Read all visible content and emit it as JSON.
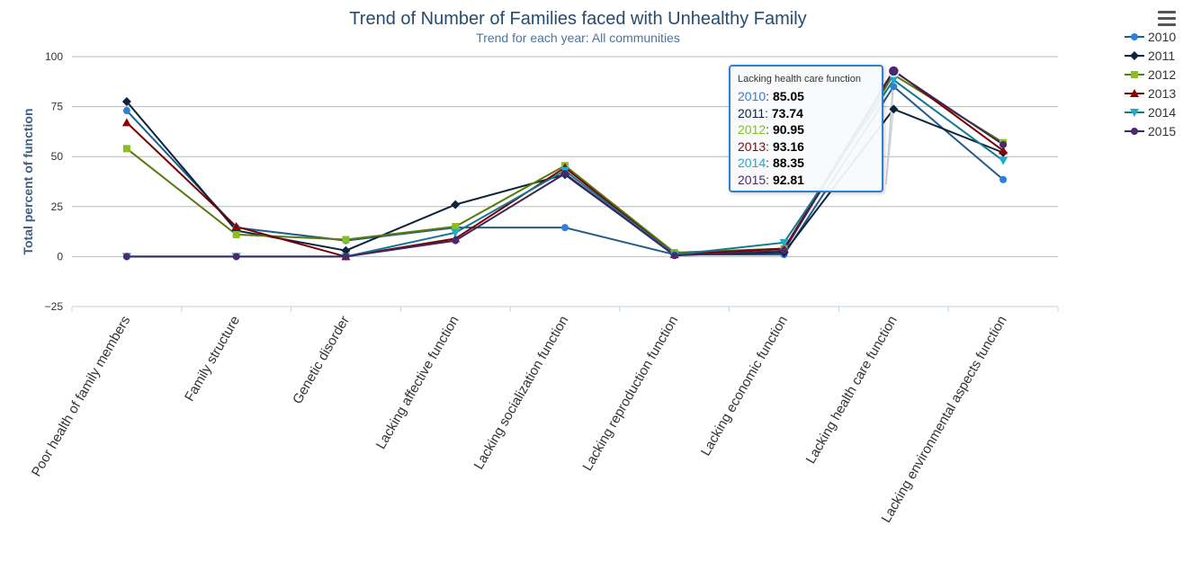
{
  "chart_data": {
    "type": "line",
    "title": "Trend of Number of Families faced with Unhealthy Family",
    "subtitle": "Trend for each year: All communities",
    "xlabel": "",
    "ylabel": "Total percent of function",
    "ylim": [
      -25,
      100
    ],
    "yticks": [
      -25,
      0,
      25,
      50,
      75,
      100
    ],
    "grid": true,
    "legend_position": "top-right",
    "categories": [
      "Poor health of family members",
      "Family structure",
      "Genetic disorder",
      "Lacking affective function",
      "Lacking socialization function",
      "Lacking reproduction function",
      "Lacking economic function",
      "Lacking health care function",
      "Lacking environmental aspects function"
    ],
    "series": [
      {
        "name": "2010",
        "color": "#2f7ed8",
        "line_color": "#1f5c8c",
        "marker": "circle",
        "values": [
          73,
          14.5,
          8,
          14.5,
          14.5,
          1,
          1,
          85.05,
          38.5
        ]
      },
      {
        "name": "2011",
        "color": "#0d233a",
        "line_color": "#0d233a",
        "marker": "diamond",
        "values": [
          77.5,
          13,
          3,
          26,
          41,
          1,
          2,
          73.74,
          52
        ]
      },
      {
        "name": "2012",
        "color": "#8bbc21",
        "line_color": "#5a7a10",
        "marker": "square",
        "values": [
          54,
          11,
          8.5,
          15,
          45.5,
          2,
          4,
          90.95,
          57
        ]
      },
      {
        "name": "2013",
        "color": "#910000",
        "line_color": "#7a0000",
        "marker": "triangle",
        "values": [
          67,
          15,
          0,
          9,
          44.5,
          1,
          4,
          93.16,
          53
        ]
      },
      {
        "name": "2014",
        "color": "#1aadce",
        "line_color": "#11788f",
        "marker": "triangle-down",
        "values": [
          0,
          0,
          0,
          12,
          43,
          1,
          7,
          88.35,
          48
        ]
      },
      {
        "name": "2015",
        "color": "#492970",
        "line_color": "#3f2460",
        "marker": "circle",
        "values": [
          0,
          0,
          0,
          8,
          41.5,
          0.5,
          3,
          92.81,
          56
        ]
      }
    ],
    "tooltip": {
      "header": "Lacking health care function",
      "rows": [
        {
          "year": "2010",
          "value": "85.05",
          "color": "#2f7ed8"
        },
        {
          "year": "2011",
          "value": "73.74",
          "color": "#0d233a"
        },
        {
          "year": "2012",
          "value": "90.95",
          "color": "#8bbc21"
        },
        {
          "year": "2013",
          "value": "93.16",
          "color": "#910000"
        },
        {
          "year": "2014",
          "value": "88.35",
          "color": "#1aadce"
        },
        {
          "year": "2015",
          "value": "92.81",
          "color": "#492970"
        }
      ]
    }
  },
  "colors": {
    "title": "#274b6d",
    "subtitle": "#4d759e",
    "grid": "#b8b8b8",
    "axis_label": "#3d5f86",
    "tooltip_border": "#2f7ed8"
  },
  "icons": {
    "menu": "hamburger-menu-icon"
  }
}
